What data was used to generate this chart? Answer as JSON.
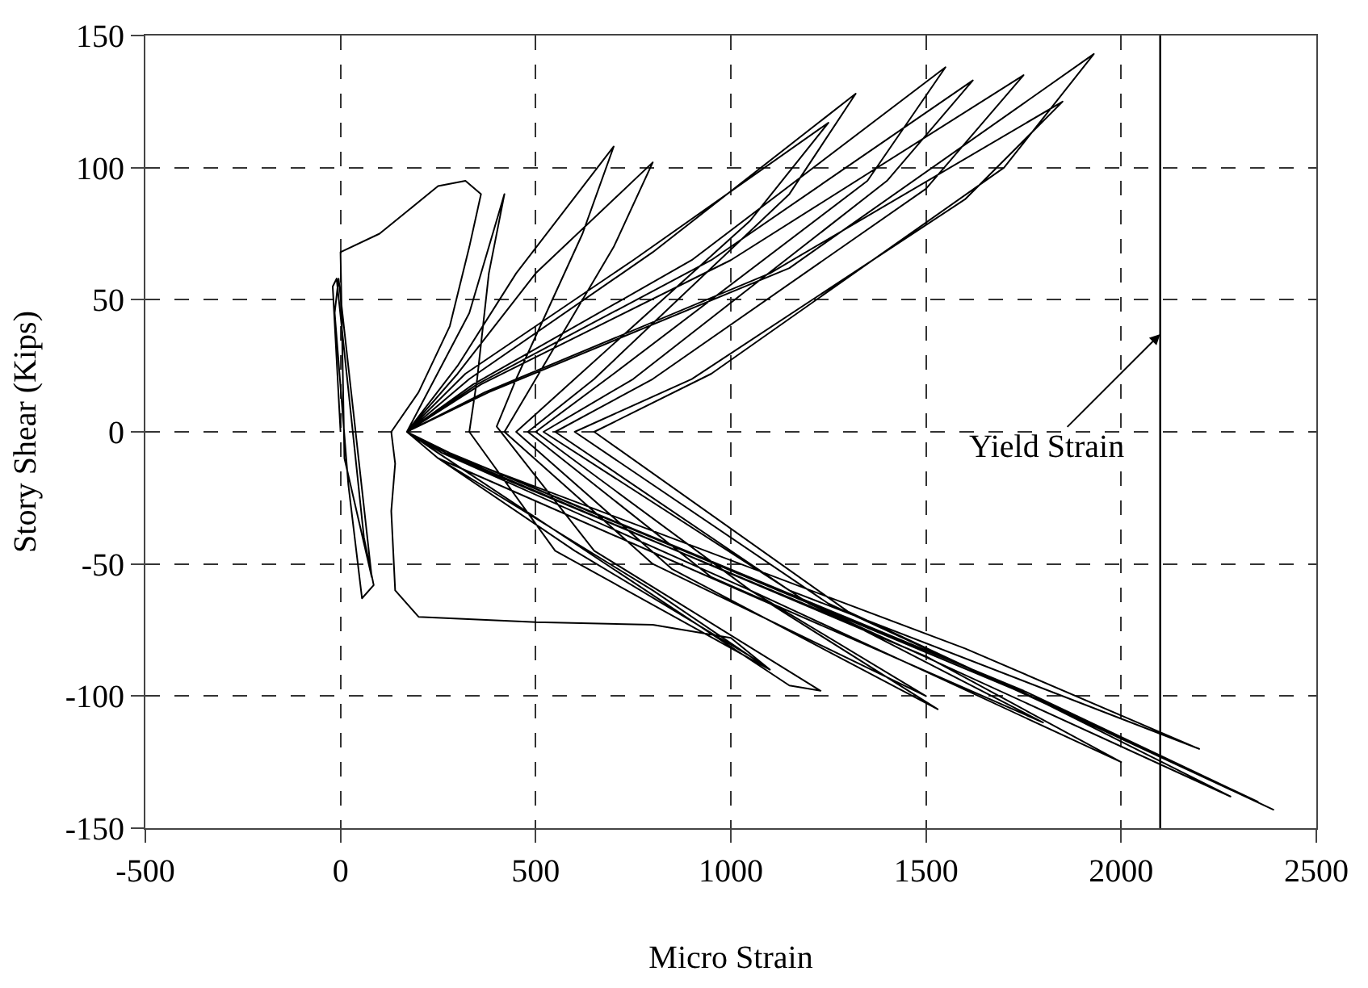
{
  "chart_data": {
    "type": "line",
    "xlabel": "Micro Strain",
    "ylabel": "Story Shear (Kips)",
    "x": [
      0,
      -20,
      -10,
      60,
      85,
      55,
      20,
      -15,
      -5,
      80,
      10,
      0,
      100,
      250,
      320,
      360,
      330,
      280,
      200,
      130,
      140,
      130,
      140,
      200,
      500,
      800,
      1000,
      1100,
      1050,
      600,
      250,
      170,
      330,
      420,
      380,
      350,
      330,
      550,
      1100,
      800,
      250,
      170,
      300,
      450,
      700,
      620,
      450,
      400,
      650,
      1230,
      1150,
      250,
      170,
      300,
      500,
      800,
      700,
      480,
      420,
      800,
      1500,
      1050,
      260,
      170,
      320,
      750,
      1250,
      1050,
      600,
      450,
      850,
      1530,
      1100,
      250,
      170,
      330,
      800,
      1320,
      1150,
      650,
      480,
      950,
      1800,
      1300,
      260,
      170,
      340,
      900,
      1550,
      1350,
      700,
      500,
      1050,
      2000,
      1500,
      270,
      170,
      350,
      950,
      1620,
      1400,
      750,
      520,
      1150,
      2200,
      1600,
      270,
      170,
      360,
      1000,
      1750,
      1500,
      800,
      550,
      1200,
      2280,
      1700,
      280,
      170,
      370,
      1100,
      1850,
      1600,
      900,
      600,
      1250,
      2350,
      1750,
      280,
      170,
      380,
      1150,
      1930,
      1700,
      950,
      650,
      1300,
      2390,
      1800,
      280,
      170
    ],
    "series": [
      {
        "color": "#000000",
        "values": [
          0,
          55,
          58,
          -40,
          -58,
          -63,
          -20,
          45,
          58,
          -55,
          -10,
          68,
          75,
          93,
          95,
          90,
          70,
          40,
          15,
          0,
          -12,
          -30,
          -60,
          -70,
          -72,
          -73,
          -78,
          -90,
          -85,
          -45,
          -10,
          0,
          45,
          90,
          60,
          20,
          0,
          -45,
          -90,
          -60,
          -10,
          0,
          25,
          60,
          108,
          75,
          20,
          2,
          -45,
          -98,
          -96,
          -8,
          0,
          22,
          60,
          102,
          70,
          15,
          0,
          -50,
          -100,
          -60,
          -8,
          0,
          22,
          65,
          117,
          80,
          20,
          0,
          -52,
          -105,
          -65,
          -10,
          0,
          20,
          68,
          128,
          90,
          20,
          0,
          -55,
          -110,
          -72,
          -8,
          0,
          18,
          65,
          138,
          95,
          22,
          0,
          -60,
          -125,
          -85,
          -8,
          0,
          18,
          65,
          133,
          95,
          20,
          0,
          -60,
          -120,
          -82,
          -8,
          0,
          18,
          65,
          135,
          92,
          20,
          0,
          -65,
          -138,
          -95,
          -8,
          0,
          15,
          60,
          125,
          88,
          20,
          0,
          -65,
          -140,
          -98,
          -8,
          0,
          15,
          62,
          143,
          100,
          22,
          0,
          -68,
          -143,
          -102,
          -8,
          0
        ]
      }
    ],
    "xlim": [
      -500,
      2500
    ],
    "xticks": [
      -500,
      0,
      500,
      1000,
      1500,
      2000,
      2500
    ],
    "ylim": [
      -150,
      150
    ],
    "yticks": [
      -150,
      -100,
      -50,
      0,
      50,
      100,
      150
    ],
    "grid": true,
    "marker": "none",
    "line_style": "solid",
    "ref_lines": [
      {
        "axis": "x",
        "value": 2100,
        "color": "#000000",
        "line_style": "solid"
      }
    ],
    "annotations": [
      {
        "text": "Yield Strain",
        "x": 2100,
        "y": 37
      }
    ]
  }
}
